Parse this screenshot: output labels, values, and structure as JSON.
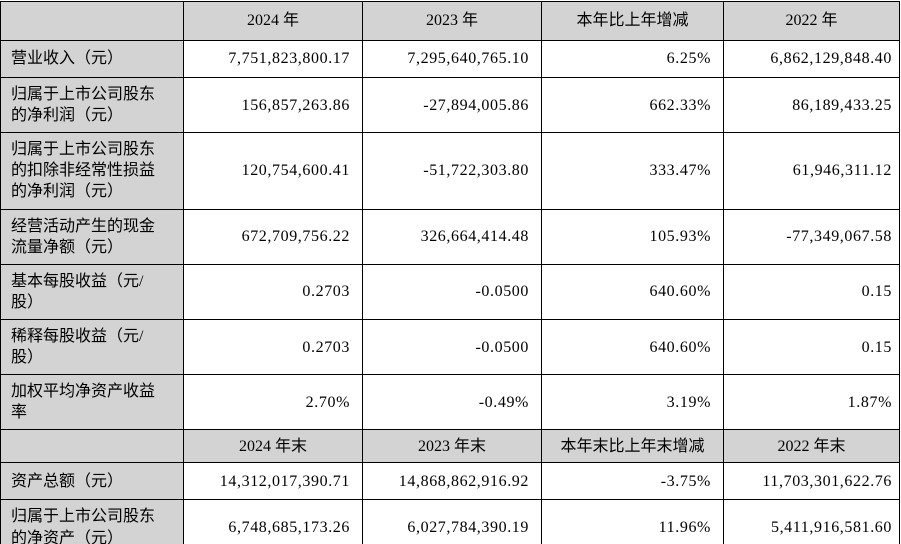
{
  "table": {
    "colors": {
      "header_bg": "#d3d3d3",
      "label_bg": "#d3d3d3",
      "cell_bg": "#ffffff",
      "border": "#000000",
      "text": "#000000"
    },
    "sections": [
      {
        "header": [
          "",
          "2024 年",
          "2023 年",
          "本年比上年增减",
          "2022 年"
        ],
        "rows": [
          {
            "label": "营业收入（元）",
            "lines": 1,
            "values": [
              "7,751,823,800.17",
              "7,295,640,765.10",
              "6.25%",
              "6,862,129,848.40"
            ]
          },
          {
            "label": "归属于上市公司股东\n的净利润（元）",
            "lines": 2,
            "values": [
              "156,857,263.86",
              "-27,894,005.86",
              "662.33%",
              "86,189,433.25"
            ]
          },
          {
            "label": "归属于上市公司股东\n的扣除非经常性损益\n的净利润（元）",
            "lines": 3,
            "values": [
              "120,754,600.41",
              "-51,722,303.80",
              "333.47%",
              "61,946,311.12"
            ]
          },
          {
            "label": "经营活动产生的现金\n流量净额（元）",
            "lines": 2,
            "values": [
              "672,709,756.22",
              "326,664,414.48",
              "105.93%",
              "-77,349,067.58"
            ]
          },
          {
            "label": "基本每股收益（元/\n股）",
            "lines": 2,
            "values": [
              "0.2703",
              "-0.0500",
              "640.60%",
              "0.15"
            ]
          },
          {
            "label": "稀释每股收益（元/\n股）",
            "lines": 2,
            "values": [
              "0.2703",
              "-0.0500",
              "640.60%",
              "0.15"
            ]
          },
          {
            "label": "加权平均净资产收益\n率",
            "lines": 2,
            "values": [
              "2.70%",
              "-0.49%",
              "3.19%",
              "1.87%"
            ]
          }
        ]
      },
      {
        "header": [
          "",
          "2024 年末",
          "2023 年末",
          "本年末比上年末增减",
          "2022 年末"
        ],
        "rows": [
          {
            "label": "资产总额（元）",
            "lines": 1,
            "values": [
              "14,312,017,390.71",
              "14,868,862,916.92",
              "-3.75%",
              "11,703,301,622.76"
            ]
          },
          {
            "label": "归属于上市公司股东\n的净资产（元）",
            "lines": 2,
            "values": [
              "6,748,685,173.26",
              "6,027,784,390.19",
              "11.96%",
              "5,411,916,581.60"
            ]
          }
        ]
      }
    ]
  }
}
